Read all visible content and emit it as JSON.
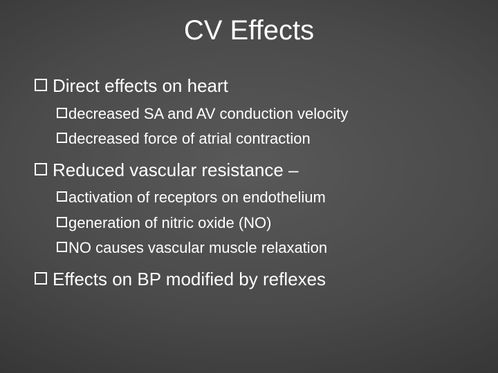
{
  "title": "CV Effects",
  "bullets": {
    "b1": "Direct effects on heart",
    "b1a": "decreased SA and AV conduction velocity",
    "b1b": "decreased force of atrial contraction",
    "b2": "Reduced vascular resistance –",
    "b2a": "activation of receptors on endothelium",
    "b2b": "generation of nitric oxide (NO)",
    "b2c": "NO causes vascular muscle relaxation",
    "b3": "Effects on BP modified by reflexes"
  },
  "style": {
    "title_fontsize": 40,
    "l1_fontsize": 26,
    "l2_fontsize": 22,
    "text_color": "#ffffff",
    "bg_gradient_center": "#595959",
    "bg_gradient_edge": "#181818",
    "bullet_border_color": "#ffffff",
    "font_family": "Arial"
  }
}
